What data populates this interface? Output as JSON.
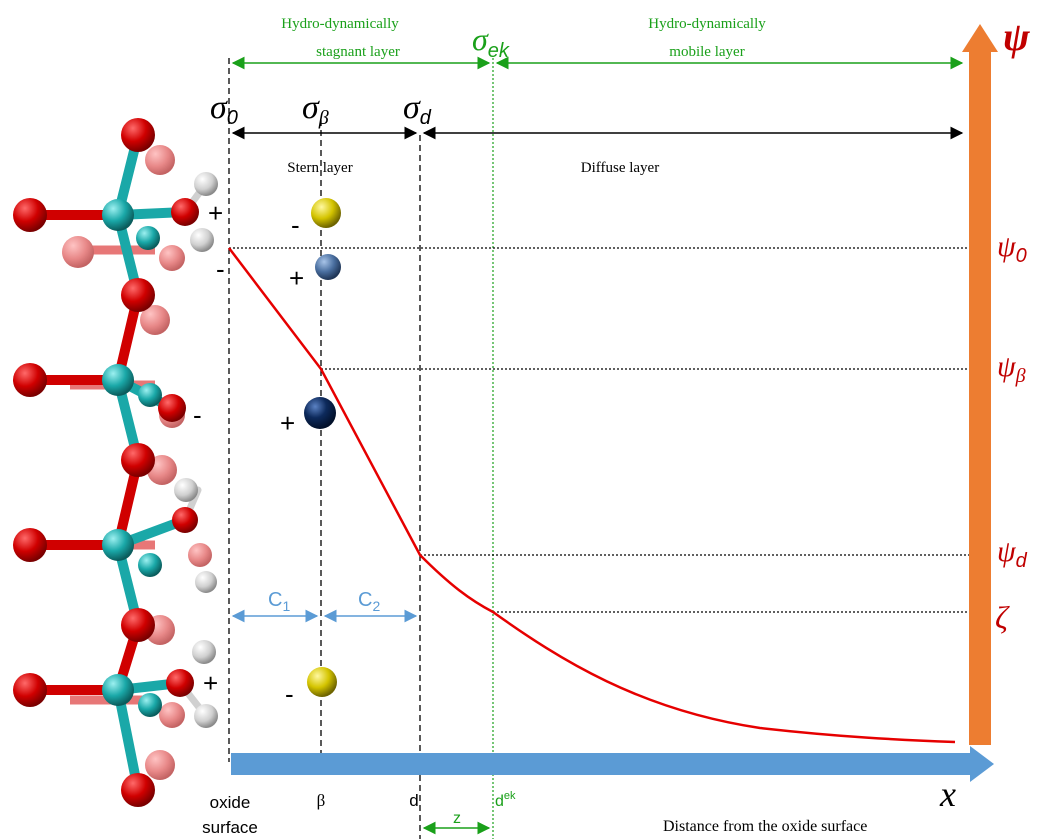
{
  "labels": {
    "stagnant_line1": "Hydro-dynamically",
    "stagnant_line2": "stagnant layer",
    "mobile_line1": "Hydro-dynamically",
    "mobile_line2": "mobile layer",
    "sigma_ek": "σ",
    "sigma_ek_sub": "ek",
    "psi_axis": "ψ",
    "sigma_0": "σ",
    "sigma_0_sub": "0",
    "sigma_beta": "σ",
    "sigma_beta_sub": "β",
    "sigma_d": "σ",
    "sigma_d_sub": "d",
    "stern_layer": "Stern layer",
    "diffuse_layer": "Diffuse layer",
    "psi_0": "ψ",
    "psi_0_sub": "0",
    "psi_beta": "ψ",
    "psi_beta_sub": "β",
    "psi_d": "ψ",
    "psi_d_sub": "d",
    "zeta": "ζ",
    "c1": "C",
    "c1_sub": "1",
    "c2": "C",
    "c2_sub": "2",
    "x_axis": "x",
    "oxide_line1": "oxide",
    "oxide_line2": "surface",
    "beta_tick": "β",
    "d_tick": "d",
    "dek_tick": "d",
    "dek_sup": "ek",
    "z_label": "z",
    "distance_caption": "Distance from the oxide surface",
    "plus": "+",
    "minus": "-"
  },
  "colors": {
    "green": "#1aa01a",
    "red_curve": "#e60000",
    "psi_labels": "#c00000",
    "orange_axis": "#ed7d31",
    "blue_axis": "#5b9bd5",
    "cap_arrows": "#5b9bd5",
    "oxygen": "#cc0000",
    "metal": "#19a6a6",
    "hydrogen": "#d6d6d6",
    "ion_yellow": "#d4c400",
    "ion_steel": "#4a6fa0",
    "ion_navy": "#0d2a5c"
  }
}
